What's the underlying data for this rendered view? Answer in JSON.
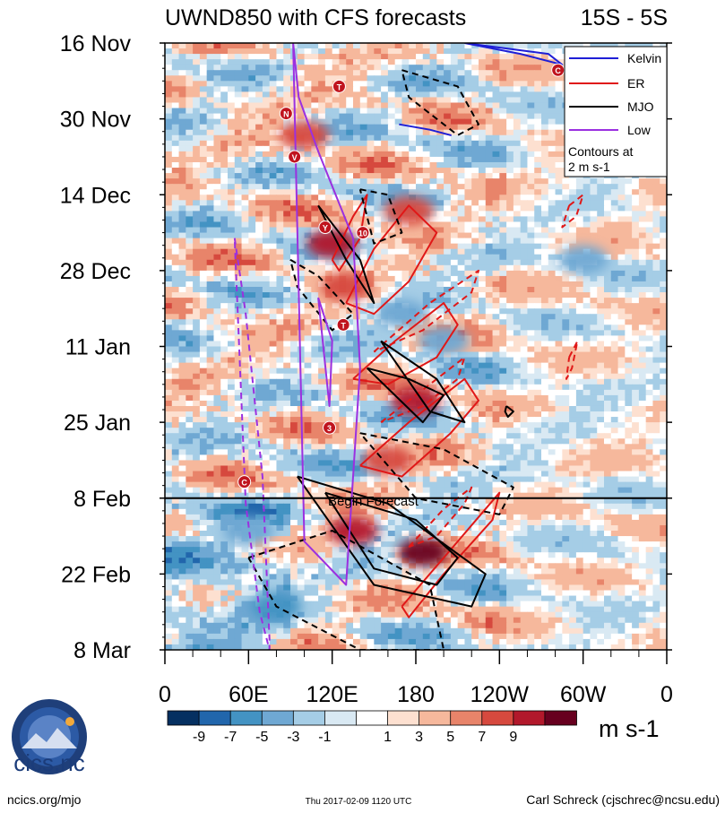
{
  "chart_data": {
    "type": "heatmap",
    "title": "UWND850 with CFS forecasts",
    "latitude_band": "15S - 5S",
    "y_axis": {
      "labels": [
        "16 Nov",
        "30 Nov",
        "14 Dec",
        "28 Dec",
        "11 Jan",
        "25 Jan",
        "8 Feb",
        "22 Feb",
        "8 Mar"
      ],
      "range_days": [
        0,
        112
      ]
    },
    "x_axis": {
      "labels": [
        "0",
        "60E",
        "120E",
        "180",
        "120W",
        "60W",
        "0"
      ],
      "range_lon": [
        0,
        360
      ]
    },
    "forecast_start": {
      "day": 84,
      "label": "Begin Forecast"
    },
    "colorbar": {
      "ticks": [
        "-9",
        "-7",
        "-5",
        "-3",
        "-1",
        "1",
        "3",
        "5",
        "7",
        "9"
      ],
      "colors": [
        "#053061",
        "#2166ac",
        "#4393c3",
        "#6fa8d3",
        "#a5cde6",
        "#d9e9f3",
        "#ffffff",
        "#fde0d0",
        "#f6b89c",
        "#e8846a",
        "#d6493e",
        "#b2182b",
        "#67001f"
      ],
      "unit": "m s-1"
    },
    "legend": {
      "entries": [
        {
          "name": "Kelvin",
          "color": "#1f1fd6"
        },
        {
          "name": "ER",
          "color": "#e01818"
        },
        {
          "name": "MJO",
          "color": "#000000"
        },
        {
          "name": "Low",
          "color": "#9b30e0"
        }
      ],
      "note_line1": "Contours at",
      "note_line2": "2 m s-1"
    },
    "storm_markers": [
      {
        "label": "T",
        "lon": 125,
        "day": 8
      },
      {
        "label": "N",
        "lon": 87,
        "day": 13
      },
      {
        "label": "V",
        "lon": 93,
        "day": 21
      },
      {
        "label": "Y",
        "lon": 115,
        "day": 34
      },
      {
        "label": "10",
        "lon": 142,
        "day": 35
      },
      {
        "label": "T",
        "lon": 128,
        "day": 52
      },
      {
        "label": "3",
        "lon": 118,
        "day": 71
      },
      {
        "label": "C",
        "lon": 57,
        "day": 81
      },
      {
        "label": "C",
        "lon": 282,
        "day": 5
      }
    ],
    "kelvin_contours": [
      {
        "lon": [
          215,
          255,
          285,
          275,
          215
        ],
        "day": [
          0,
          2,
          4,
          2,
          0
        ]
      },
      {
        "lon": [
          168,
          190,
          205,
          190,
          168
        ],
        "day": [
          15,
          16,
          17,
          16,
          15
        ]
      }
    ],
    "er_contours": [
      {
        "style": "solid",
        "lon": [
          130,
          150,
          175,
          195,
          175,
          150,
          130
        ],
        "day": [
          48,
          38,
          30,
          35,
          44,
          50,
          48
        ]
      },
      {
        "style": "solid",
        "lon": [
          135,
          165,
          200,
          210,
          195,
          160,
          135
        ],
        "day": [
          62,
          55,
          48,
          52,
          58,
          63,
          62
        ]
      },
      {
        "style": "solid",
        "lon": [
          140,
          175,
          215,
          225,
          205,
          170,
          140
        ],
        "day": [
          78,
          70,
          62,
          66,
          72,
          80,
          78
        ]
      },
      {
        "style": "solid",
        "lon": [
          170,
          210,
          240,
          235,
          200,
          175,
          170
        ],
        "day": [
          104,
          92,
          83,
          88,
          98,
          106,
          104
        ]
      },
      {
        "style": "solid",
        "lon": [
          120,
          135,
          145,
          140,
          125,
          120
        ],
        "day": [
          40,
          32,
          28,
          36,
          42,
          40
        ]
      },
      {
        "style": "dashed",
        "lon": [
          150,
          190,
          225,
          220,
          185,
          150
        ],
        "day": [
          57,
          48,
          42,
          46,
          53,
          57
        ]
      },
      {
        "style": "dashed",
        "lon": [
          155,
          190,
          215,
          210,
          185,
          155
        ],
        "day": [
          70,
          63,
          58,
          62,
          67,
          70
        ]
      },
      {
        "style": "dashed",
        "lon": [
          175,
          200,
          220,
          215,
          195,
          175
        ],
        "day": [
          93,
          86,
          82,
          85,
          91,
          93
        ]
      },
      {
        "style": "dashed",
        "lon": [
          290,
          300,
          295,
          285,
          290
        ],
        "day": [
          30,
          28,
          32,
          34,
          30
        ]
      },
      {
        "style": "dashed",
        "lon": [
          290,
          296,
          292,
          288,
          290
        ],
        "day": [
          58,
          55,
          60,
          62,
          58
        ]
      }
    ],
    "mjo_contours": [
      {
        "style": "solid",
        "lon": [
          110,
          140,
          150,
          130,
          110
        ],
        "day": [
          30,
          40,
          48,
          40,
          30
        ]
      },
      {
        "style": "solid",
        "lon": [
          155,
          195,
          215,
          190,
          155
        ],
        "day": [
          55,
          62,
          70,
          68,
          55
        ]
      },
      {
        "style": "solid",
        "lon": [
          145,
          175,
          200,
          185,
          145
        ],
        "day": [
          60,
          62,
          65,
          70,
          60
        ]
      },
      {
        "style": "solid",
        "lon": [
          95,
          160,
          230,
          220,
          150,
          95
        ],
        "day": [
          80,
          85,
          98,
          104,
          100,
          80
        ]
      },
      {
        "style": "solid",
        "lon": [
          115,
          180,
          210,
          195,
          150,
          115
        ],
        "day": [
          83,
          88,
          95,
          100,
          97,
          83
        ]
      },
      {
        "style": "solid",
        "lon": [
          245,
          250,
          246,
          244,
          245
        ],
        "day": [
          67,
          68,
          69,
          68,
          67
        ]
      },
      {
        "style": "dashed",
        "lon": [
          170,
          210,
          225,
          210,
          175,
          170
        ],
        "day": [
          5,
          8,
          15,
          17,
          10,
          5
        ]
      },
      {
        "style": "dashed",
        "lon": [
          140,
          160,
          170,
          150,
          140
        ],
        "day": [
          27,
          28,
          35,
          37,
          27
        ]
      },
      {
        "style": "dashed",
        "lon": [
          90,
          110,
          135,
          120,
          95,
          90
        ],
        "day": [
          40,
          43,
          50,
          53,
          45,
          40
        ]
      },
      {
        "style": "dashed",
        "lon": [
          140,
          200,
          250,
          240,
          180,
          140
        ],
        "day": [
          72,
          75,
          82,
          87,
          84,
          72
        ]
      },
      {
        "style": "dashed",
        "lon": [
          60,
          120,
          190,
          200,
          140,
          80,
          60
        ],
        "day": [
          95,
          90,
          100,
          112,
          112,
          104,
          95
        ]
      }
    ],
    "low_contours": [
      {
        "style": "solid",
        "lon": [
          92,
          96,
          110,
          135,
          140,
          130,
          100,
          92
        ],
        "day": [
          0,
          10,
          20,
          36,
          60,
          100,
          92,
          0
        ]
      },
      {
        "style": "solid",
        "lon": [
          110,
          120,
          118,
          110
        ],
        "day": [
          47,
          55,
          67,
          47
        ]
      },
      {
        "style": "dashed",
        "lon": [
          50,
          58,
          70,
          75,
          75,
          68,
          58,
          50
        ],
        "day": [
          36,
          50,
          80,
          110,
          112,
          105,
          85,
          36
        ]
      }
    ],
    "hotspots": [
      {
        "lon": 185,
        "day": 94,
        "val": 9
      },
      {
        "lon": 180,
        "day": 66,
        "val": 8
      },
      {
        "lon": 135,
        "day": 90,
        "val": 7
      },
      {
        "lon": 130,
        "day": 45,
        "val": 6
      },
      {
        "lon": 120,
        "day": 37,
        "val": 7
      },
      {
        "lon": 160,
        "day": 77,
        "val": 5
      },
      {
        "lon": 100,
        "day": 17,
        "val": 6
      },
      {
        "lon": 175,
        "day": 31,
        "val": 6
      },
      {
        "lon": 60,
        "day": 90,
        "val": -5
      },
      {
        "lon": 80,
        "day": 104,
        "val": -7
      },
      {
        "lon": 170,
        "day": 50,
        "val": -4
      },
      {
        "lon": 200,
        "day": 55,
        "val": -5
      },
      {
        "lon": 300,
        "day": 40,
        "val": -5
      }
    ]
  },
  "footer": {
    "logo_text": "cics.nc",
    "left": "ncics.org/mjo",
    "center": "Thu 2017-02-09 1120 UTC",
    "right": "Carl Schreck (cjschrec@ncsu.edu)"
  },
  "icons": [
    "cicsnc-logo-icon",
    "storm-marker-icon"
  ]
}
